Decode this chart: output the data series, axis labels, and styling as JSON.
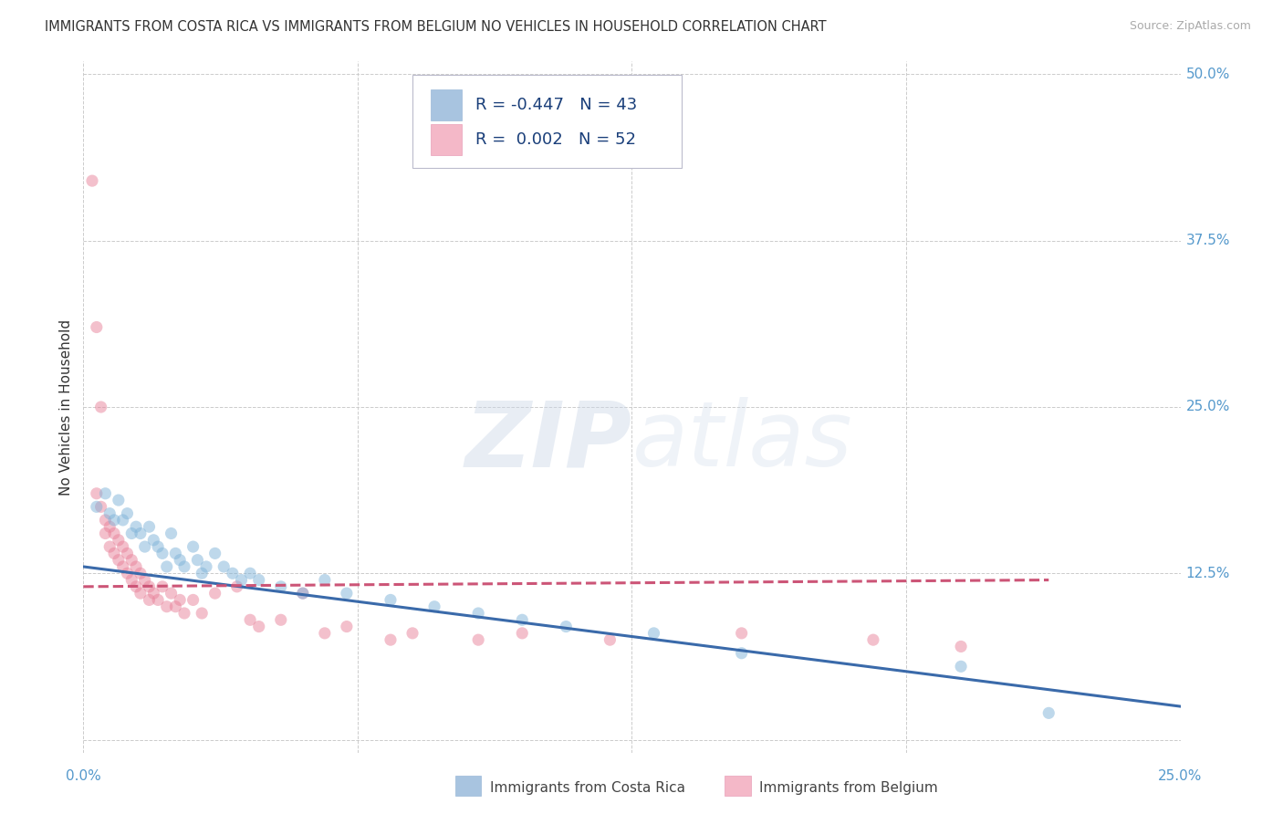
{
  "title": "IMMIGRANTS FROM COSTA RICA VS IMMIGRANTS FROM BELGIUM NO VEHICLES IN HOUSEHOLD CORRELATION CHART",
  "source": "Source: ZipAtlas.com",
  "ylabel": "No Vehicles in Household",
  "xlim": [
    0.0,
    0.25
  ],
  "ylim": [
    -0.01,
    0.51
  ],
  "watermark_zip": "ZIP",
  "watermark_atlas": "atlas",
  "legend_r_cr": "R = -0.447",
  "legend_n_cr": "N = 43",
  "legend_r_be": "R =  0.002",
  "legend_n_be": "N = 52",
  "legend_label_cr": "Immigrants from Costa Rica",
  "legend_label_be": "Immigrants from Belgium",
  "scatter_color_cr": "#7fb3d8",
  "scatter_color_be": "#e8829a",
  "line_color_cr": "#3a6aaa",
  "line_color_be": "#cc5577",
  "background_color": "#ffffff",
  "grid_color": "#cccccc",
  "scatter_size": 90,
  "scatter_alpha": 0.5,
  "costa_rica_scatter": [
    [
      0.003,
      0.175
    ],
    [
      0.005,
      0.185
    ],
    [
      0.006,
      0.17
    ],
    [
      0.007,
      0.165
    ],
    [
      0.008,
      0.18
    ],
    [
      0.009,
      0.165
    ],
    [
      0.01,
      0.17
    ],
    [
      0.011,
      0.155
    ],
    [
      0.012,
      0.16
    ],
    [
      0.013,
      0.155
    ],
    [
      0.014,
      0.145
    ],
    [
      0.015,
      0.16
    ],
    [
      0.016,
      0.15
    ],
    [
      0.017,
      0.145
    ],
    [
      0.018,
      0.14
    ],
    [
      0.019,
      0.13
    ],
    [
      0.02,
      0.155
    ],
    [
      0.021,
      0.14
    ],
    [
      0.022,
      0.135
    ],
    [
      0.023,
      0.13
    ],
    [
      0.025,
      0.145
    ],
    [
      0.026,
      0.135
    ],
    [
      0.027,
      0.125
    ],
    [
      0.028,
      0.13
    ],
    [
      0.03,
      0.14
    ],
    [
      0.032,
      0.13
    ],
    [
      0.034,
      0.125
    ],
    [
      0.036,
      0.12
    ],
    [
      0.038,
      0.125
    ],
    [
      0.04,
      0.12
    ],
    [
      0.045,
      0.115
    ],
    [
      0.05,
      0.11
    ],
    [
      0.055,
      0.12
    ],
    [
      0.06,
      0.11
    ],
    [
      0.07,
      0.105
    ],
    [
      0.08,
      0.1
    ],
    [
      0.09,
      0.095
    ],
    [
      0.1,
      0.09
    ],
    [
      0.11,
      0.085
    ],
    [
      0.13,
      0.08
    ],
    [
      0.15,
      0.065
    ],
    [
      0.2,
      0.055
    ],
    [
      0.22,
      0.02
    ]
  ],
  "belgium_scatter": [
    [
      0.002,
      0.42
    ],
    [
      0.003,
      0.31
    ],
    [
      0.004,
      0.25
    ],
    [
      0.003,
      0.185
    ],
    [
      0.004,
      0.175
    ],
    [
      0.005,
      0.165
    ],
    [
      0.005,
      0.155
    ],
    [
      0.006,
      0.16
    ],
    [
      0.006,
      0.145
    ],
    [
      0.007,
      0.155
    ],
    [
      0.007,
      0.14
    ],
    [
      0.008,
      0.15
    ],
    [
      0.008,
      0.135
    ],
    [
      0.009,
      0.145
    ],
    [
      0.009,
      0.13
    ],
    [
      0.01,
      0.14
    ],
    [
      0.01,
      0.125
    ],
    [
      0.011,
      0.135
    ],
    [
      0.011,
      0.12
    ],
    [
      0.012,
      0.13
    ],
    [
      0.012,
      0.115
    ],
    [
      0.013,
      0.125
    ],
    [
      0.013,
      0.11
    ],
    [
      0.014,
      0.12
    ],
    [
      0.015,
      0.115
    ],
    [
      0.015,
      0.105
    ],
    [
      0.016,
      0.11
    ],
    [
      0.017,
      0.105
    ],
    [
      0.018,
      0.115
    ],
    [
      0.019,
      0.1
    ],
    [
      0.02,
      0.11
    ],
    [
      0.021,
      0.1
    ],
    [
      0.022,
      0.105
    ],
    [
      0.023,
      0.095
    ],
    [
      0.025,
      0.105
    ],
    [
      0.027,
      0.095
    ],
    [
      0.03,
      0.11
    ],
    [
      0.035,
      0.115
    ],
    [
      0.038,
      0.09
    ],
    [
      0.04,
      0.085
    ],
    [
      0.045,
      0.09
    ],
    [
      0.05,
      0.11
    ],
    [
      0.055,
      0.08
    ],
    [
      0.06,
      0.085
    ],
    [
      0.07,
      0.075
    ],
    [
      0.075,
      0.08
    ],
    [
      0.09,
      0.075
    ],
    [
      0.1,
      0.08
    ],
    [
      0.12,
      0.075
    ],
    [
      0.15,
      0.08
    ],
    [
      0.18,
      0.075
    ],
    [
      0.2,
      0.07
    ]
  ],
  "cr_line_x": [
    0.0,
    0.25
  ],
  "cr_line_y": [
    0.13,
    0.025
  ],
  "be_line_x": [
    0.0,
    0.22
  ],
  "be_line_y": [
    0.115,
    0.12
  ]
}
